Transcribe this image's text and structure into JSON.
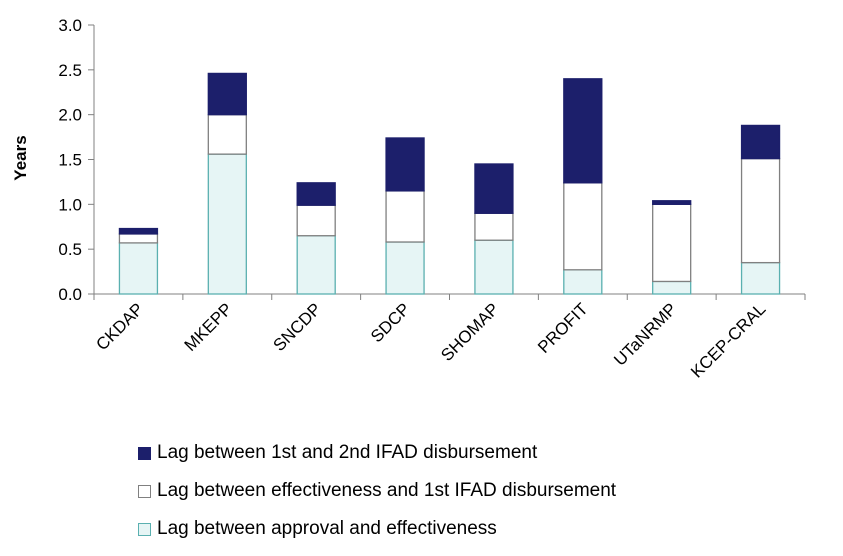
{
  "chart_data": {
    "type": "bar",
    "stacked": true,
    "title": "",
    "xlabel": "",
    "ylabel": "Years",
    "ylim": [
      0,
      3.0
    ],
    "yticks": [
      "0.0",
      "0.5",
      "1.0",
      "1.5",
      "2.0",
      "2.5",
      "3.0"
    ],
    "grid": false,
    "legend_position": "bottom",
    "categories": [
      "CKDAP",
      "MKEPP",
      "SNCDP",
      "SDCP",
      "SHOMAP",
      "PROFIT",
      "UTaNRMP",
      "KCEP-CRAL"
    ],
    "series": [
      {
        "name": "Lag between approval and effectiveness",
        "values": [
          0.57,
          1.56,
          0.65,
          0.58,
          0.6,
          0.27,
          0.14,
          0.35
        ],
        "fill": "#e6f5f5",
        "stroke": "#5ab0b0"
      },
      {
        "name": "Lag between effectiveness and 1st IFAD disbursement",
        "values": [
          0.1,
          0.44,
          0.34,
          0.57,
          0.3,
          0.97,
          0.86,
          1.16
        ],
        "fill": "#ffffff",
        "stroke": "#808080"
      },
      {
        "name": "Lag between 1st and 2nd IFAD disbursement",
        "values": [
          0.06,
          0.46,
          0.25,
          0.59,
          0.55,
          1.16,
          0.04,
          0.37
        ],
        "fill": "#1c1f6b",
        "stroke": "#1c1f6b"
      }
    ],
    "legend_order": [
      2,
      1,
      0
    ]
  }
}
